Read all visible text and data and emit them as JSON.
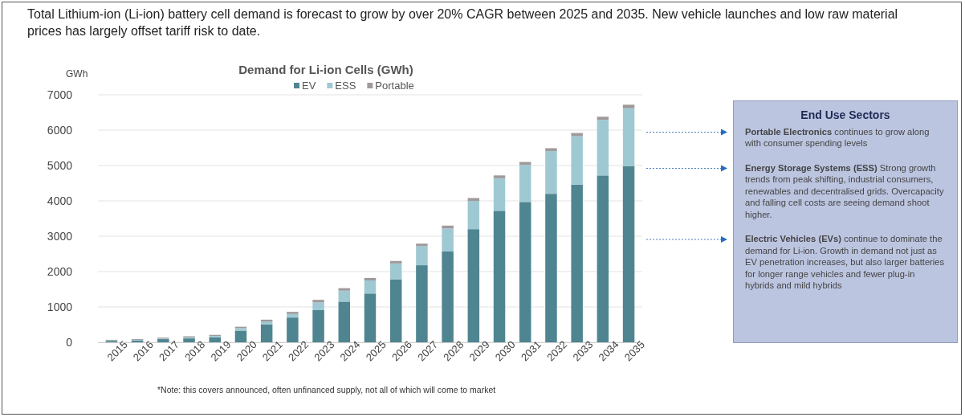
{
  "chart_data": {
    "type": "bar",
    "stacked": true,
    "title": "Total Lithium-ion (Li-ion) battery cell demand is forecast to grow by over 20% CAGR between 2025 and 2035. New vehicle launches and low raw material prices has largely offset tariff risk to date.",
    "subtitle": "Demand for Li-ion Cells (GWh)",
    "ylabel": "GWh",
    "categories": [
      "2015",
      "2016",
      "2017",
      "2018",
      "2019",
      "2020",
      "2021",
      "2022",
      "2023",
      "2024",
      "2025",
      "2026",
      "2027",
      "2028",
      "2029",
      "2030",
      "2031",
      "2032",
      "2033",
      "2034",
      "2035"
    ],
    "series": [
      {
        "name": "EV",
        "color": "#4f8590",
        "values": [
          40,
          55,
          90,
          110,
          140,
          330,
          510,
          700,
          910,
          1150,
          1380,
          1780,
          2180,
          2570,
          3200,
          3720,
          3970,
          4200,
          4460,
          4720,
          4980
        ]
      },
      {
        "name": "ESS",
        "color": "#9fc9d2",
        "values": [
          10,
          15,
          15,
          30,
          40,
          70,
          80,
          100,
          220,
          310,
          370,
          450,
          540,
          650,
          800,
          920,
          1050,
          1210,
          1370,
          1570,
          1640
        ]
      },
      {
        "name": "Portable",
        "color": "#a0999b",
        "values": [
          20,
          20,
          25,
          30,
          30,
          40,
          50,
          60,
          70,
          70,
          70,
          70,
          70,
          80,
          80,
          80,
          80,
          80,
          90,
          90,
          100
        ]
      }
    ],
    "ylim": [
      0,
      7000
    ],
    "yticks": [
      0,
      1000,
      2000,
      3000,
      4000,
      5000,
      6000,
      7000
    ],
    "grid": "y",
    "legend": "top",
    "annotations": [
      "End Use Sectors",
      "Portable Electronics",
      "continues to grow along with consumer spending levels",
      "Energy Storage Systems (ESS)",
      "Strong growth trends from peak shifting, industrial consumers, renewables and decentralised grids. Overcapacity and falling cell costs are seeing demand shoot higher.",
      "Electric Vehicles (EVs)",
      "continue to dominate the demand for Li-ion. Growth in demand not just as EV penetration increases, but also larger batteries for longer range vehicles and fewer plug-in hybrids and mild hybrids",
      "*Note: this covers announced, often unfinanced supply, not all of which will come to market"
    ]
  }
}
